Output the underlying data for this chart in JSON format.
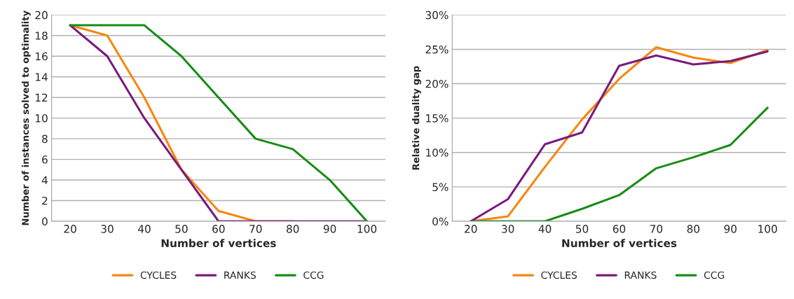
{
  "chart_data": [
    {
      "type": "line",
      "xlabel": "Number of vertices",
      "ylabel": "Number of instances solved to optimality",
      "categories": [
        "20",
        "30",
        "40",
        "50",
        "60",
        "70",
        "80",
        "90",
        "100"
      ],
      "series": [
        {
          "name": "CYCLES",
          "color": "#f7860f",
          "values": [
            19,
            18,
            12,
            5,
            1,
            0,
            0,
            null,
            null
          ]
        },
        {
          "name": "RANKS",
          "color": "#7a1a7e",
          "values": [
            19,
            16,
            10,
            5,
            0,
            0,
            0,
            0,
            0
          ]
        },
        {
          "name": "CCG",
          "color": "#178c17",
          "values": [
            19,
            19,
            19,
            16,
            12,
            8,
            7,
            4,
            0
          ]
        }
      ],
      "ylim": [
        0,
        20
      ],
      "yticks": [
        0,
        2,
        4,
        6,
        8,
        10,
        12,
        14,
        16,
        18,
        20
      ],
      "grid": "y",
      "legend": "bottom",
      "line_style": "solid",
      "marker": "none"
    },
    {
      "type": "line",
      "xlabel": "Number of vertices",
      "ylabel": "Relative duality gap",
      "categories": [
        "20",
        "30",
        "40",
        "50",
        "60",
        "70",
        "80",
        "90",
        "100"
      ],
      "series": [
        {
          "name": "CYCLES",
          "color": "#f7860f",
          "values": [
            0,
            0.7,
            7.9,
            14.8,
            20.7,
            25.3,
            23.8,
            23.0,
            24.9
          ]
        },
        {
          "name": "RANKS",
          "color": "#7a1a7e",
          "values": [
            0,
            3.2,
            11.2,
            12.9,
            22.6,
            24.1,
            22.8,
            23.3,
            24.7
          ]
        },
        {
          "name": "CCG",
          "color": "#178c17",
          "values": [
            0,
            0,
            0,
            1.8,
            3.8,
            7.7,
            9.3,
            11.1,
            16.5
          ]
        }
      ],
      "ylim": [
        0,
        30
      ],
      "yticks": [
        {
          "value": 0,
          "label": "0%"
        },
        {
          "value": 5,
          "label": "5%"
        },
        {
          "value": 10,
          "label": "10%"
        },
        {
          "value": 15,
          "label": "15%"
        },
        {
          "value": 20,
          "label": "20%"
        },
        {
          "value": 25,
          "label": "25%"
        },
        {
          "value": 30,
          "label": "30%"
        }
      ],
      "grid": "y",
      "legend": "bottom",
      "line_style": "solid",
      "marker": "none"
    }
  ]
}
